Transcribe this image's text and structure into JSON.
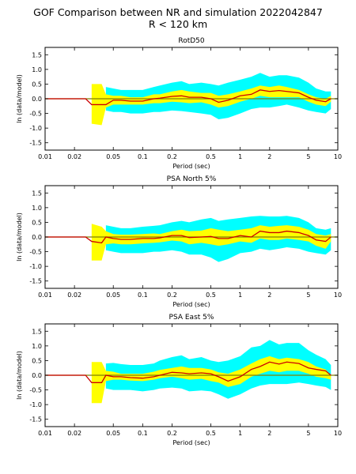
{
  "figure": {
    "title_line1": "GOF Comparison between NR and simulation 2022042847",
    "title_line2": "R < 120 km"
  },
  "colors": {
    "outer_band": "#00ffff",
    "inner_band": "#ffff00",
    "mean_line": "#cc0000",
    "zero_line": "#808000"
  },
  "chart_data": [
    {
      "type": "line",
      "title": "RotD50",
      "xlabel": "Period (sec)",
      "ylabel": "ln (data/model)",
      "xscale": "log",
      "xlim": [
        0.01,
        10
      ],
      "ylim": [
        -1.75,
        1.75
      ],
      "xticks": [
        0.01,
        0.02,
        0.05,
        0.1,
        0.2,
        0.5,
        1,
        2,
        5,
        10
      ],
      "xtick_labels": [
        "0.01",
        "0.02",
        "0.05",
        "0.1",
        "0.2",
        "0.5",
        "1",
        "2",
        "5",
        "10"
      ],
      "yticks": [
        -1.5,
        -1.0,
        -0.5,
        0.0,
        0.5,
        1.0,
        1.5
      ],
      "ytick_labels": [
        "-1.5",
        "-1.0",
        "-0.5",
        "0.0",
        "0.5",
        "1.0",
        "1.5"
      ],
      "grid": false,
      "x": [
        0.01,
        0.026,
        0.03,
        0.038,
        0.042,
        0.05,
        0.06,
        0.075,
        0.1,
        0.13,
        0.15,
        0.2,
        0.25,
        0.3,
        0.4,
        0.5,
        0.6,
        0.75,
        1.0,
        1.3,
        1.6,
        2.0,
        2.5,
        3.0,
        4.0,
        5.0,
        6.0,
        7.5,
        8.5
      ],
      "mean": [
        0.0,
        0.0,
        -0.2,
        -0.2,
        -0.2,
        -0.05,
        -0.05,
        -0.08,
        -0.08,
        0.0,
        0.02,
        0.08,
        0.1,
        0.05,
        0.05,
        0.0,
        -0.12,
        -0.05,
        0.1,
        0.15,
        0.3,
        0.25,
        0.28,
        0.25,
        0.2,
        0.05,
        -0.05,
        -0.1,
        0.0
      ],
      "std1_upper": [
        0.0,
        0.0,
        0.5,
        0.5,
        0.15,
        0.1,
        0.1,
        0.05,
        0.05,
        0.15,
        0.15,
        0.25,
        0.3,
        0.25,
        0.2,
        0.2,
        0.1,
        0.15,
        0.25,
        0.35,
        0.45,
        0.4,
        0.45,
        0.4,
        0.3,
        0.15,
        0.05,
        0.0,
        0.1
      ],
      "std1_lower": [
        0.0,
        0.0,
        -0.85,
        -0.9,
        -0.3,
        -0.2,
        -0.2,
        -0.2,
        -0.2,
        -0.15,
        -0.15,
        -0.1,
        -0.12,
        -0.15,
        -0.12,
        -0.2,
        -0.3,
        -0.25,
        -0.1,
        0.0,
        0.1,
        0.05,
        0.05,
        0.05,
        0.05,
        -0.1,
        -0.2,
        -0.25,
        -0.1
      ],
      "std2_upper": [
        0.0,
        0.0,
        0.0,
        0.0,
        0.4,
        0.35,
        0.3,
        0.3,
        0.3,
        0.4,
        0.45,
        0.55,
        0.6,
        0.5,
        0.55,
        0.5,
        0.45,
        0.55,
        0.65,
        0.75,
        0.88,
        0.75,
        0.8,
        0.8,
        0.72,
        0.55,
        0.35,
        0.25,
        0.25
      ],
      "std2_lower": [
        0.0,
        0.0,
        0.0,
        0.0,
        -0.4,
        -0.45,
        -0.45,
        -0.5,
        -0.5,
        -0.45,
        -0.45,
        -0.4,
        -0.42,
        -0.45,
        -0.5,
        -0.55,
        -0.7,
        -0.65,
        -0.5,
        -0.35,
        -0.3,
        -0.3,
        -0.25,
        -0.2,
        -0.3,
        -0.4,
        -0.45,
        -0.5,
        -0.35
      ]
    },
    {
      "type": "line",
      "title": "PSA North 5%",
      "xlabel": "Period (sec)",
      "ylabel": "ln (data/model)",
      "xscale": "log",
      "xlim": [
        0.01,
        10
      ],
      "ylim": [
        -1.75,
        1.75
      ],
      "xticks": [
        0.01,
        0.02,
        0.05,
        0.1,
        0.2,
        0.5,
        1,
        2,
        5,
        10
      ],
      "xtick_labels": [
        "0.01",
        "0.02",
        "0.05",
        "0.1",
        "0.2",
        "0.5",
        "1",
        "2",
        "5",
        "10"
      ],
      "yticks": [
        -1.5,
        -1.0,
        -0.5,
        0.0,
        0.5,
        1.0,
        1.5
      ],
      "ytick_labels": [
        "-1.5",
        "-1.0",
        "-0.5",
        "0.0",
        "0.5",
        "1.0",
        "1.5"
      ],
      "grid": false,
      "x": [
        0.01,
        0.026,
        0.03,
        0.038,
        0.042,
        0.05,
        0.06,
        0.075,
        0.1,
        0.13,
        0.15,
        0.2,
        0.25,
        0.3,
        0.4,
        0.5,
        0.6,
        0.75,
        1.0,
        1.3,
        1.6,
        2.0,
        2.5,
        3.0,
        4.0,
        5.0,
        6.0,
        7.5,
        8.5
      ],
      "mean": [
        0.0,
        0.0,
        -0.15,
        -0.2,
        0.0,
        -0.05,
        -0.08,
        -0.08,
        -0.05,
        -0.05,
        -0.03,
        0.05,
        0.05,
        -0.02,
        0.0,
        0.02,
        -0.05,
        -0.05,
        0.05,
        0.0,
        0.2,
        0.15,
        0.15,
        0.2,
        0.15,
        0.05,
        -0.1,
        -0.15,
        0.0
      ],
      "std1_upper": [
        0.0,
        0.0,
        0.45,
        0.35,
        0.2,
        0.1,
        0.08,
        0.08,
        0.1,
        0.12,
        0.1,
        0.2,
        0.25,
        0.2,
        0.22,
        0.3,
        0.25,
        0.2,
        0.25,
        0.3,
        0.4,
        0.35,
        0.38,
        0.4,
        0.35,
        0.25,
        0.1,
        0.05,
        0.1
      ],
      "std1_lower": [
        0.0,
        0.0,
        -0.8,
        -0.8,
        -0.25,
        -0.22,
        -0.25,
        -0.25,
        -0.22,
        -0.2,
        -0.18,
        -0.12,
        -0.15,
        -0.25,
        -0.2,
        -0.25,
        -0.3,
        -0.25,
        -0.15,
        -0.2,
        -0.05,
        -0.1,
        -0.1,
        -0.05,
        -0.1,
        -0.15,
        -0.3,
        -0.4,
        -0.15
      ],
      "std2_upper": [
        0.0,
        0.0,
        0.0,
        0.0,
        0.4,
        0.35,
        0.3,
        0.3,
        0.35,
        0.38,
        0.4,
        0.5,
        0.55,
        0.5,
        0.6,
        0.65,
        0.55,
        0.6,
        0.65,
        0.7,
        0.72,
        0.7,
        0.7,
        0.72,
        0.65,
        0.5,
        0.3,
        0.25,
        0.3
      ],
      "std2_lower": [
        0.0,
        0.0,
        0.0,
        0.0,
        -0.45,
        -0.5,
        -0.55,
        -0.55,
        -0.55,
        -0.5,
        -0.5,
        -0.45,
        -0.5,
        -0.6,
        -0.6,
        -0.7,
        -0.85,
        -0.75,
        -0.55,
        -0.5,
        -0.4,
        -0.45,
        -0.4,
        -0.35,
        -0.4,
        -0.5,
        -0.55,
        -0.6,
        -0.45
      ]
    },
    {
      "type": "line",
      "title": "PSA East 5%",
      "xlabel": "Period (sec)",
      "ylabel": "ln (data/model)",
      "xscale": "log",
      "xlim": [
        0.01,
        10
      ],
      "ylim": [
        -1.75,
        1.75
      ],
      "xticks": [
        0.01,
        0.02,
        0.05,
        0.1,
        0.2,
        0.5,
        1,
        2,
        5,
        10
      ],
      "xtick_labels": [
        "0.01",
        "0.02",
        "0.05",
        "0.1",
        "0.2",
        "0.5",
        "1",
        "2",
        "5",
        "10"
      ],
      "yticks": [
        -1.5,
        -1.0,
        -0.5,
        0.0,
        0.5,
        1.0,
        1.5
      ],
      "ytick_labels": [
        "-1.5",
        "-1.0",
        "-0.5",
        "0.0",
        "0.5",
        "1.0",
        "1.5"
      ],
      "grid": false,
      "x": [
        0.01,
        0.026,
        0.03,
        0.038,
        0.042,
        0.05,
        0.06,
        0.075,
        0.1,
        0.13,
        0.15,
        0.2,
        0.25,
        0.3,
        0.4,
        0.5,
        0.6,
        0.75,
        1.0,
        1.3,
        1.6,
        2.0,
        2.5,
        3.0,
        4.0,
        5.0,
        6.0,
        7.5,
        8.5
      ],
      "mean": [
        0.0,
        0.0,
        -0.25,
        -0.25,
        0.0,
        -0.05,
        -0.05,
        -0.08,
        -0.1,
        -0.05,
        0.0,
        0.1,
        0.08,
        0.05,
        0.08,
        0.05,
        -0.05,
        -0.2,
        -0.05,
        0.2,
        0.3,
        0.45,
        0.38,
        0.45,
        0.4,
        0.25,
        0.2,
        0.15,
        0.0
      ],
      "std1_upper": [
        0.0,
        0.0,
        0.45,
        0.45,
        0.15,
        0.12,
        0.05,
        0.05,
        0.05,
        0.12,
        0.18,
        0.25,
        0.3,
        0.25,
        0.25,
        0.2,
        0.1,
        0.05,
        0.2,
        0.4,
        0.55,
        0.65,
        0.55,
        0.6,
        0.55,
        0.45,
        0.3,
        0.2,
        0.0
      ],
      "std1_lower": [
        0.0,
        0.0,
        -0.95,
        -0.95,
        -0.2,
        -0.15,
        -0.15,
        -0.18,
        -0.2,
        -0.15,
        -0.1,
        -0.05,
        -0.1,
        -0.15,
        -0.12,
        -0.2,
        -0.25,
        -0.4,
        -0.3,
        -0.05,
        0.05,
        0.15,
        0.1,
        0.15,
        0.15,
        0.05,
        -0.05,
        -0.1,
        -0.15
      ],
      "std2_upper": [
        0.0,
        0.0,
        0.0,
        0.0,
        0.4,
        0.42,
        0.38,
        0.35,
        0.35,
        0.4,
        0.5,
        0.62,
        0.68,
        0.55,
        0.62,
        0.5,
        0.45,
        0.5,
        0.65,
        0.95,
        1.0,
        1.2,
        1.05,
        1.1,
        1.1,
        0.85,
        0.7,
        0.55,
        0.35
      ],
      "std2_lower": [
        0.0,
        0.0,
        0.0,
        0.0,
        -0.45,
        -0.5,
        -0.5,
        -0.5,
        -0.55,
        -0.5,
        -0.45,
        -0.42,
        -0.45,
        -0.55,
        -0.52,
        -0.55,
        -0.65,
        -0.8,
        -0.65,
        -0.45,
        -0.35,
        -0.3,
        -0.3,
        -0.3,
        -0.25,
        -0.3,
        -0.35,
        -0.4,
        -0.5
      ]
    }
  ]
}
